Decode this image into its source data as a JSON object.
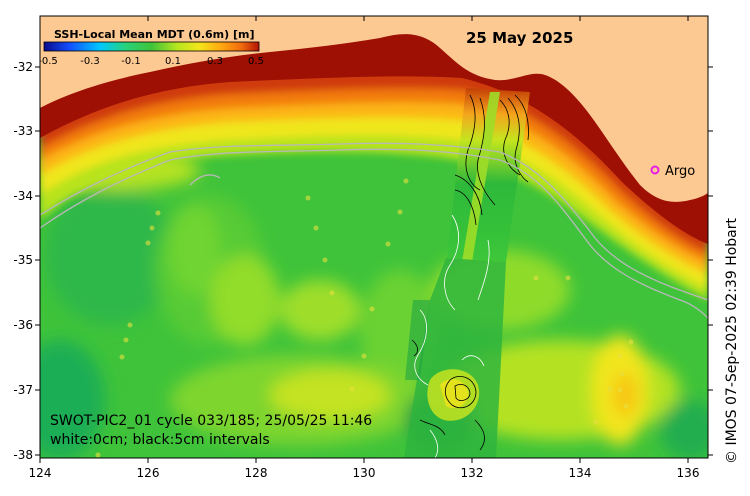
{
  "map": {
    "date_label": "25 May 2025",
    "colorbar": {
      "title": "SSH-Local Mean MDT (0.6m) [m]",
      "ticks": [
        "-0.5",
        "-0.3",
        "-0.1",
        "0.1",
        "0.3",
        "0.5"
      ],
      "stops": [
        "#0a0a8c",
        "#1250ff",
        "#00c8ff",
        "#27d27a",
        "#3fc33a",
        "#b7e61f",
        "#f2e61a",
        "#ffaa10",
        "#f06a0e",
        "#b31204"
      ]
    },
    "x_ticks": [
      "124",
      "126",
      "128",
      "130",
      "132",
      "134",
      "136"
    ],
    "y_ticks": [
      "-32",
      "-33",
      "-34",
      "-35",
      "-36",
      "-37",
      "-38"
    ],
    "legend": {
      "marker_label": "Argo",
      "marker_color": "#e61ee6"
    },
    "annotation": {
      "line1": "SWOT-PIC2_01 cycle 033/185; 25/05/25 11:46",
      "line2": "white:0cm; black:5cm intervals"
    },
    "credit": "© IMOS 07-Sep-2025 02:39 Hobart",
    "colors": {
      "land": "#fdc992",
      "deep_red": "#9d1003",
      "ocean_green": "#39c43a"
    },
    "icons": [
      "argo-float-marker",
      "contour-lines",
      "swot-swath"
    ]
  }
}
